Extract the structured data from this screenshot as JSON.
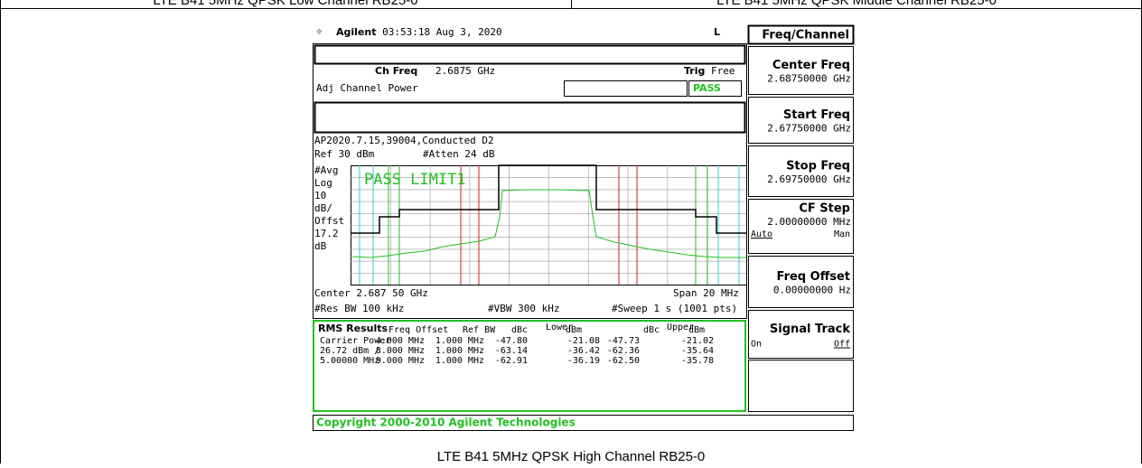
{
  "header": [
    "LTE B41 5MHz QPSK Low Channel RB25-0",
    "LTE B41 5MHz QPSK Middle Channel RB25-0"
  ],
  "analyzer": {
    "brand": "Agilent",
    "timestamp": "03:53:18  Aug 3, 2020",
    "flag": "L",
    "ch_freq_label": "Ch Freq",
    "ch_freq": "2.6875 GHz",
    "trig_label": "Trig",
    "trig": "Free",
    "measurement": "Adj Channel Power",
    "pass": "PASS",
    "title_line": "AP2020.7.15,39004,Conducted D2",
    "ref": "Ref 30 dBm",
    "atten": "#Atten 24 dB",
    "left_labels": [
      "#Avg",
      "Log",
      "10",
      "dB/",
      "Offst",
      "17.2",
      "dB"
    ],
    "limit_status": "PASS LIMIT1",
    "center": "Center 2.687 50 GHz",
    "span": "Span 20 MHz",
    "rbw": "#Res BW 100 kHz",
    "vbw": "#VBW 300 kHz",
    "sweep": "#Sweep 1 s (1001 pts)",
    "results": {
      "title": "RMS Results",
      "headers": [
        "Freq Offset",
        "Ref BW",
        "dBc",
        "Lower",
        "dBm",
        "dBc",
        "Upper",
        "dBm"
      ],
      "left": [
        "Carrier Power",
        "26.72 dBm /",
        "5.00000 MHz"
      ],
      "rows": [
        [
          "4.000 MHz",
          "1.000 MHz",
          "-47.80",
          "-21.08",
          "-47.73",
          "-21.02"
        ],
        [
          "8.000 MHz",
          "1.000 MHz",
          "-63.14",
          "-36.42",
          "-62.36",
          "-35.64"
        ],
        [
          "9.000 MHz",
          "1.000 MHz",
          "-62.91",
          "-36.19",
          "-62.50",
          "-35.78"
        ]
      ]
    },
    "copyright": "Copyright 2000-2010 Agilent Technologies",
    "menu": "Freq/Channel",
    "softkeys": [
      {
        "label": "Center Freq",
        "value": "2.68750000 GHz"
      },
      {
        "label": "Start Freq",
        "value": "2.67750000 GHz"
      },
      {
        "label": "Stop Freq",
        "value": "2.69750000 GHz"
      },
      {
        "label": "CF Step",
        "value": "2.00000000 MHz",
        "options": [
          "Auto",
          "Man"
        ]
      },
      {
        "label": "Freq Offset",
        "value": "0.00000000  Hz"
      },
      {
        "label": "Signal Track",
        "options": [
          "On",
          "Off"
        ]
      }
    ]
  },
  "caption": "LTE B41 5MHz QPSK High Channel RB25-0"
}
